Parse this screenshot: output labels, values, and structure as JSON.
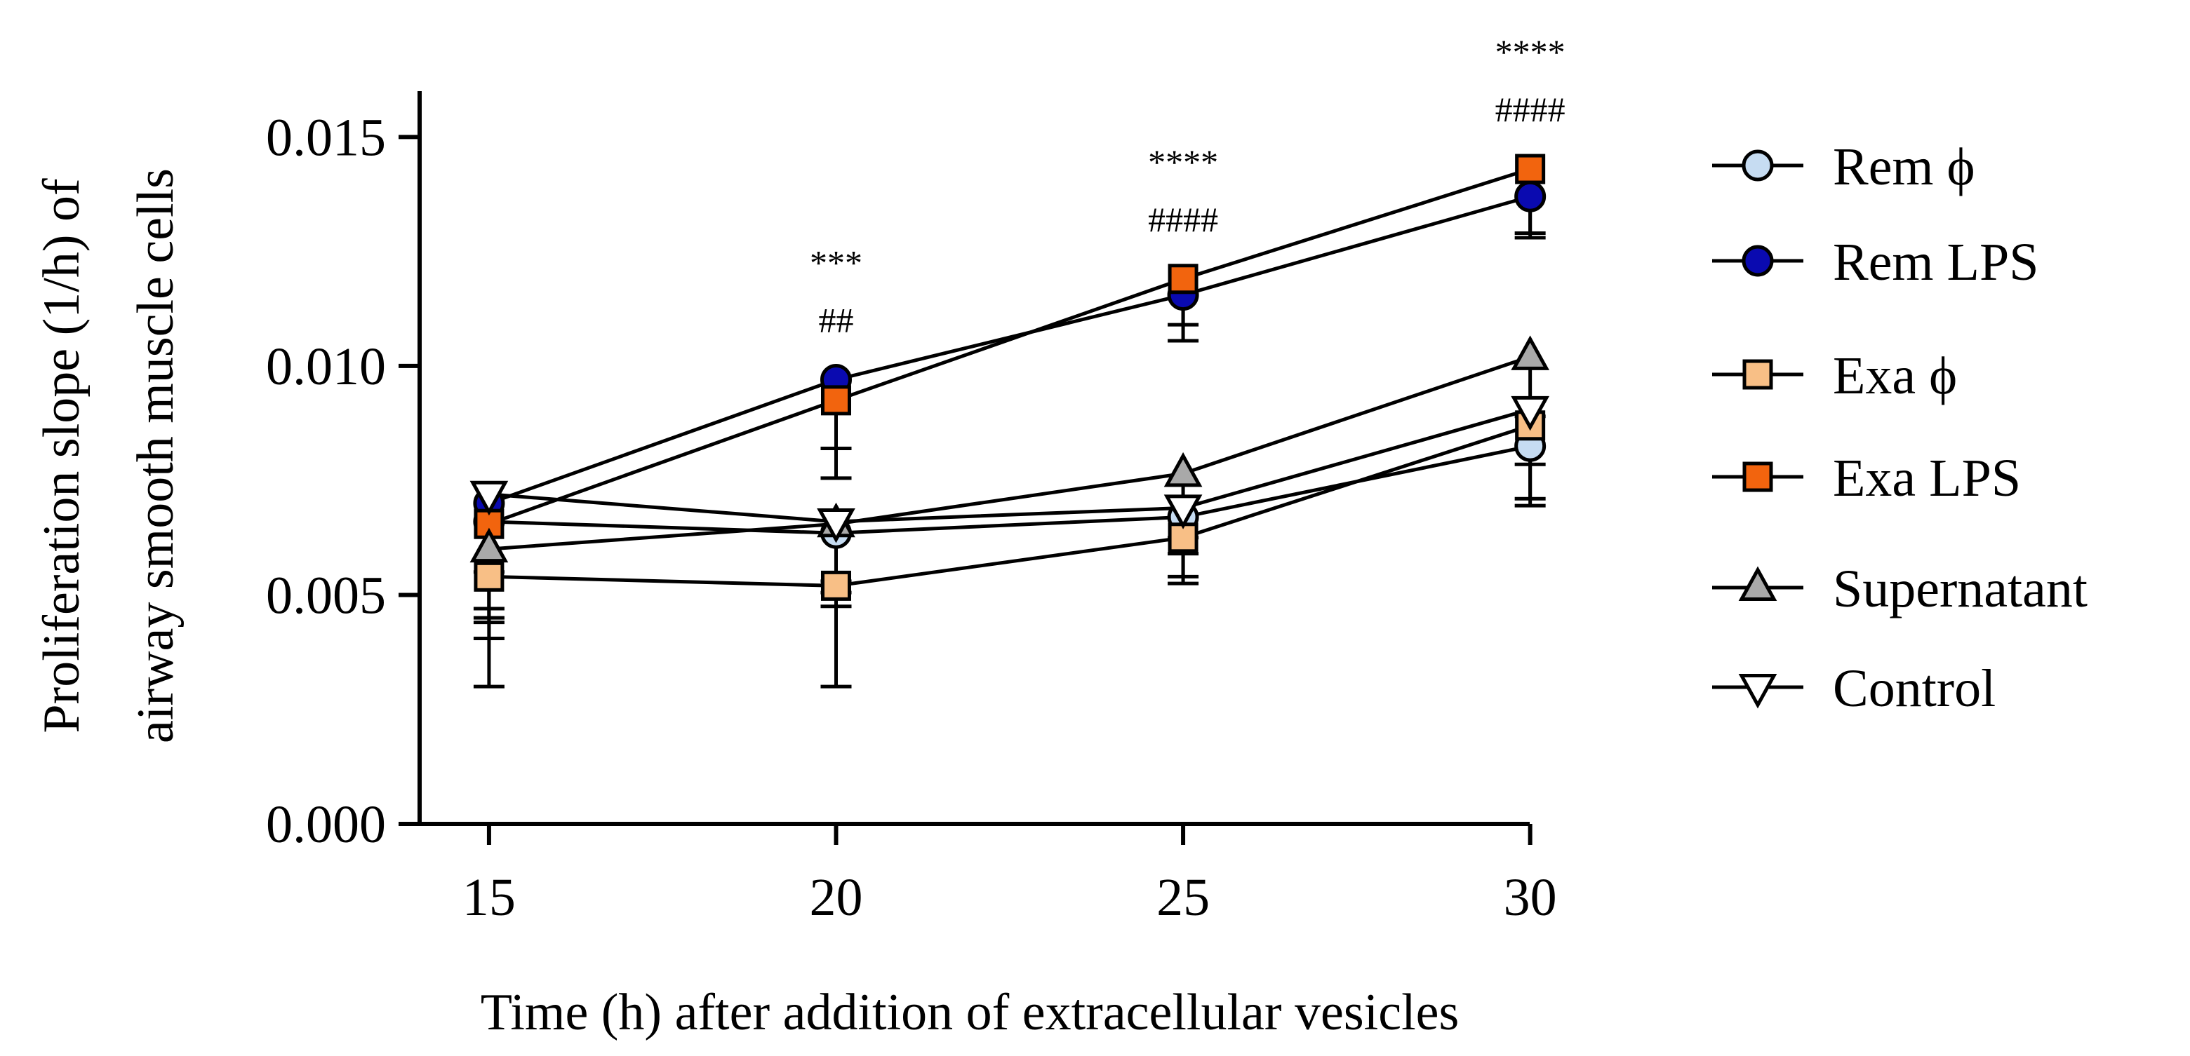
{
  "chart_data": {
    "type": "line",
    "xlabel": "Time (h) after addition of extracellular vesicles",
    "ylabel_line1": "Proliferation slope (1/h) of",
    "ylabel_line2": "airway smooth muscle cells",
    "x": [
      15,
      20,
      25,
      30
    ],
    "x_tick_labels": [
      "15",
      "20",
      "25",
      "30"
    ],
    "xlim": [
      14,
      30.6
    ],
    "ylim": [
      0,
      0.016
    ],
    "y_ticks": [
      0,
      0.005,
      0.01,
      0.015
    ],
    "y_tick_labels": [
      "0.000",
      "0.005",
      "0.010",
      "0.015"
    ],
    "legend_position": "right",
    "series": [
      {
        "name": "Rem ϕ",
        "marker": "circle",
        "color": "#c6dcf2",
        "values": [
          0.0066,
          0.00635,
          0.0067,
          0.00825
        ],
        "errors": [
          0.0022,
          0.0013,
          0.0013,
          0.0013
        ]
      },
      {
        "name": "Rem LPS",
        "marker": "circle",
        "color": "#0a0ab0",
        "values": [
          0.007,
          0.0097,
          0.01155,
          0.0137
        ],
        "errors": [
          0.0015,
          0.0015,
          0.001,
          0.0008
        ]
      },
      {
        "name": "Exa ϕ",
        "marker": "square",
        "color": "#f8bf86",
        "values": [
          0.0054,
          0.0052,
          0.00625,
          0.0087
        ],
        "errors": [
          0.0024,
          0.0022,
          0.001,
          0.0016
        ]
      },
      {
        "name": "Exa LPS",
        "marker": "square",
        "color": "#f2640e",
        "values": [
          0.00655,
          0.00925,
          0.0119,
          0.0143
        ],
        "errors": [
          0.0025,
          0.0017,
          0.001,
          0.0015
        ]
      },
      {
        "name": "Supernatant",
        "marker": "triangle-up",
        "color": "#a9a9a9",
        "values": [
          0.006,
          0.00655,
          0.00765,
          0.0102
        ],
        "errors": [
          0.0015,
          0.0018,
          0.0014,
          0.0013
        ]
      },
      {
        "name": "Control",
        "marker": "triangle-down",
        "color": "#ffffff",
        "values": [
          0.0072,
          0.0066,
          0.0069,
          0.00905
        ],
        "errors": [
          0.0025,
          0.0013,
          0.001,
          0.0012
        ]
      }
    ],
    "annotations": [
      {
        "x": 20,
        "stars": "***",
        "hashes": "##"
      },
      {
        "x": 25,
        "stars": "****",
        "hashes": "####"
      },
      {
        "x": 30,
        "stars": "****",
        "hashes": "####"
      }
    ]
  }
}
